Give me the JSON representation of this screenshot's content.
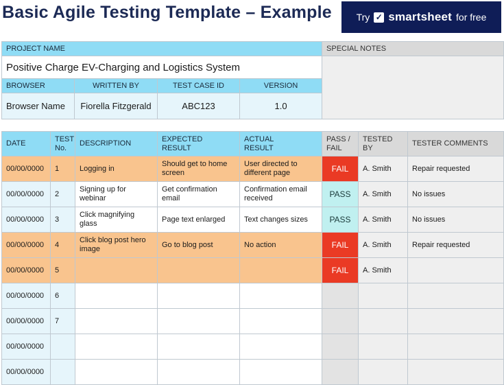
{
  "title": "Basic Agile Testing Template – Example",
  "banner": {
    "prefix": "Try",
    "brand": "smartsheet",
    "suffix": "for free"
  },
  "info": {
    "project_name_label": "PROJECT NAME",
    "special_notes_label": "SPECIAL NOTES",
    "project_name": "Positive Charge EV-Charging and Logistics System",
    "browser_label": "BROWSER",
    "written_by_label": "WRITTEN BY",
    "test_case_id_label": "TEST CASE ID",
    "version_label": "VERSION",
    "browser": "Browser Name",
    "written_by": "Fiorella Fitzgerald",
    "test_case_id": "ABC123",
    "version": "1.0"
  },
  "columns": {
    "date": "DATE",
    "test_no_1": "TEST",
    "test_no_2": "No.",
    "description": "DESCRIPTION",
    "expected_1": "EXPECTED",
    "expected_2": "RESULT",
    "actual_1": "ACTUAL",
    "actual_2": "RESULT",
    "pass_fail_1": "PASS /",
    "pass_fail_2": "FAIL",
    "tested_by": "TESTED BY",
    "comments": "TESTER COMMENTS"
  },
  "rows": [
    {
      "date": "00/00/0000",
      "no": "1",
      "description": "Logging in",
      "expected": "Should get to home screen",
      "actual": "User directed to different page",
      "result": "FAIL",
      "tester": "A. Smith",
      "comment": "Repair requested",
      "tone": "orange"
    },
    {
      "date": "00/00/0000",
      "no": "2",
      "description": "Signing up for webinar",
      "expected": "Get confirmation email",
      "actual": "Confirmation email received",
      "result": "PASS",
      "tester": "A. Smith",
      "comment": "No issues",
      "tone": "white"
    },
    {
      "date": "00/00/0000",
      "no": "3",
      "description": "Click magnifying glass",
      "expected": "Page text enlarged",
      "actual": "Text changes sizes",
      "result": "PASS",
      "tester": "A. Smith",
      "comment": "No issues",
      "tone": "white"
    },
    {
      "date": "00/00/0000",
      "no": "4",
      "description": "Click blog post hero image",
      "expected": "Go to blog post",
      "actual": "No action",
      "result": "FAIL",
      "tester": "A. Smith",
      "comment": "Repair requested",
      "tone": "orange"
    },
    {
      "date": "00/00/0000",
      "no": "5",
      "description": "",
      "expected": "",
      "actual": "",
      "result": "FAIL",
      "tester": "A. Smith",
      "comment": "",
      "tone": "orange"
    },
    {
      "date": "00/00/0000",
      "no": "6",
      "description": "",
      "expected": "",
      "actual": "",
      "result": "",
      "tester": "",
      "comment": "",
      "tone": "white"
    },
    {
      "date": "00/00/0000",
      "no": "7",
      "description": "",
      "expected": "",
      "actual": "",
      "result": "",
      "tester": "",
      "comment": "",
      "tone": "white"
    },
    {
      "date": "00/00/0000",
      "no": "",
      "description": "",
      "expected": "",
      "actual": "",
      "result": "",
      "tester": "",
      "comment": "",
      "tone": "white"
    },
    {
      "date": "00/00/0000",
      "no": "",
      "description": "",
      "expected": "",
      "actual": "",
      "result": "",
      "tester": "",
      "comment": "",
      "tone": "white"
    }
  ],
  "colors": {
    "header": "#8fdcf5",
    "orange": "#f9c48e",
    "fail": "#ea3a24",
    "pass": "#c0f0f0",
    "banner": "#0f1d57"
  }
}
